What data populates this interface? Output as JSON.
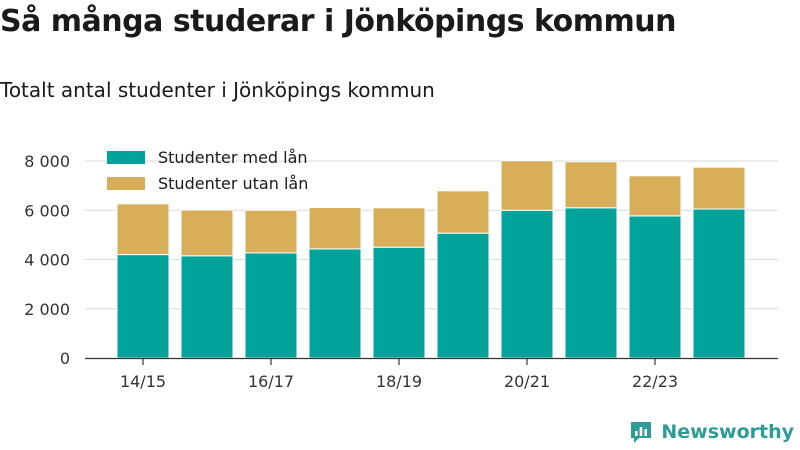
{
  "title": "Så många studerar i Jönköpings kommun",
  "subtitle": "Totalt antal studenter i Jönköpings kommun",
  "brand": "Newsworthy",
  "colors": {
    "with_loan": "#00a39a",
    "without_loan": "#d9ae5b",
    "brand": "#2e9c96"
  },
  "chart_data": {
    "type": "bar",
    "stacked": true,
    "categories": [
      "14/15",
      "15/16",
      "16/17",
      "17/18",
      "18/19",
      "19/20",
      "20/21",
      "21/22",
      "22/23",
      "23/24"
    ],
    "x_tick_labels": [
      "14/15",
      "16/17",
      "18/19",
      "20/21",
      "22/23"
    ],
    "series": [
      {
        "name": "Studenter med lån",
        "values": [
          4200,
          4150,
          4270,
          4430,
          4500,
          5070,
          6000,
          6100,
          5770,
          6050
        ]
      },
      {
        "name": "Studenter utan lån",
        "values": [
          2060,
          1860,
          1730,
          1680,
          1600,
          1720,
          2010,
          1870,
          1630,
          1700
        ]
      }
    ],
    "ylim": [
      0,
      8000
    ],
    "yticks": [
      0,
      2000,
      4000,
      6000,
      8000
    ],
    "ytick_labels": [
      "0",
      "2 000",
      "4 000",
      "6 000",
      "8 000"
    ],
    "grid": true,
    "legend_position": "top-left"
  }
}
